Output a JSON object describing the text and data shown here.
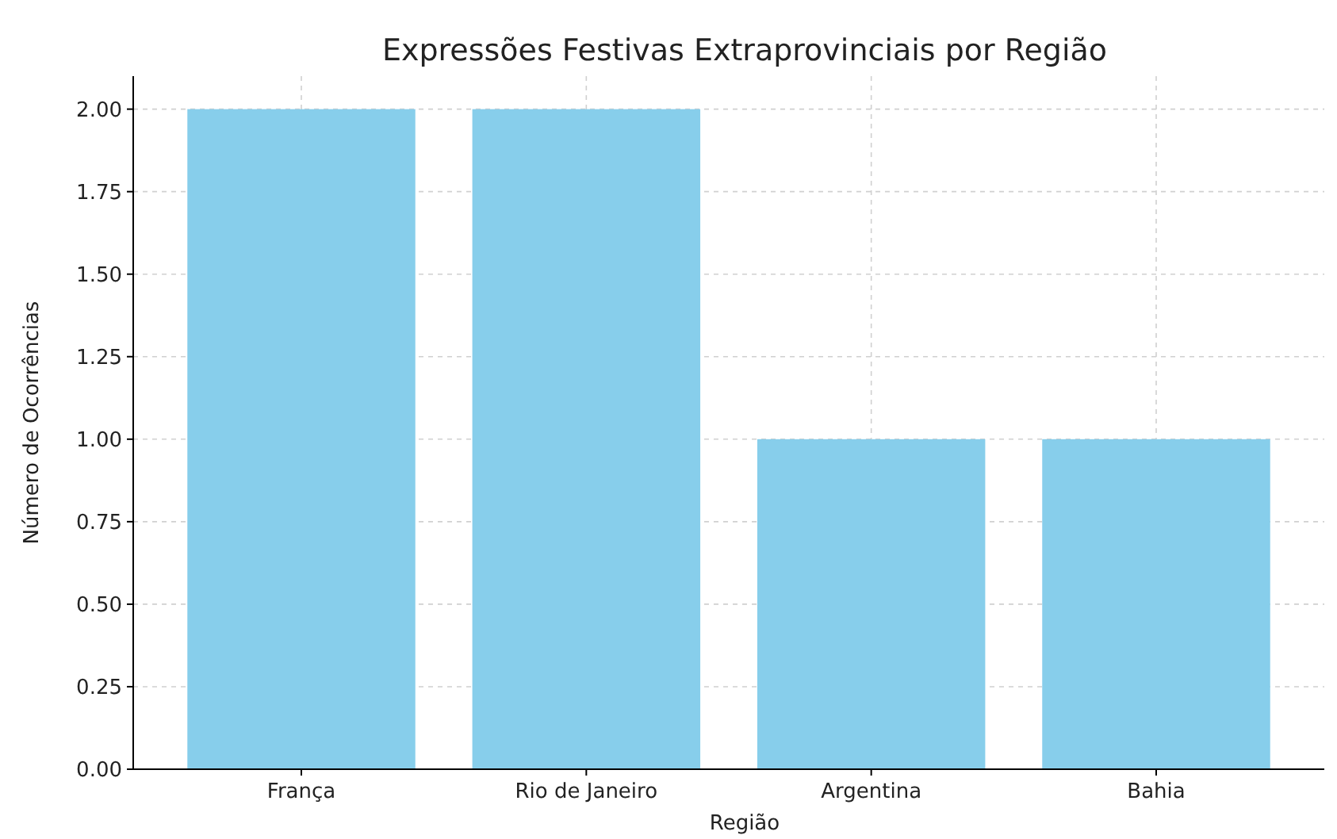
{
  "chart_data": {
    "type": "bar",
    "title": "Expressões Festivas Extraprovinciais por Região",
    "xlabel": "Região",
    "ylabel": "Número de Ocorrências",
    "categories": [
      "França",
      "Rio de Janeiro",
      "Argentina",
      "Bahia"
    ],
    "values": [
      2,
      2,
      1,
      1
    ],
    "color": "#87ceeb",
    "ylim": [
      0,
      2.1
    ],
    "yticks": [
      {
        "value": 0,
        "label": "0.00"
      },
      {
        "value": 0.25,
        "label": "0.25"
      },
      {
        "value": 0.5,
        "label": "0.50"
      },
      {
        "value": 0.75,
        "label": "0.75"
      },
      {
        "value": 1,
        "label": "1.00"
      },
      {
        "value": 1.25,
        "label": "1.25"
      },
      {
        "value": 1.5,
        "label": "1.50"
      },
      {
        "value": 1.75,
        "label": "1.75"
      },
      {
        "value": 2,
        "label": "2.00"
      }
    ],
    "grid": true
  }
}
